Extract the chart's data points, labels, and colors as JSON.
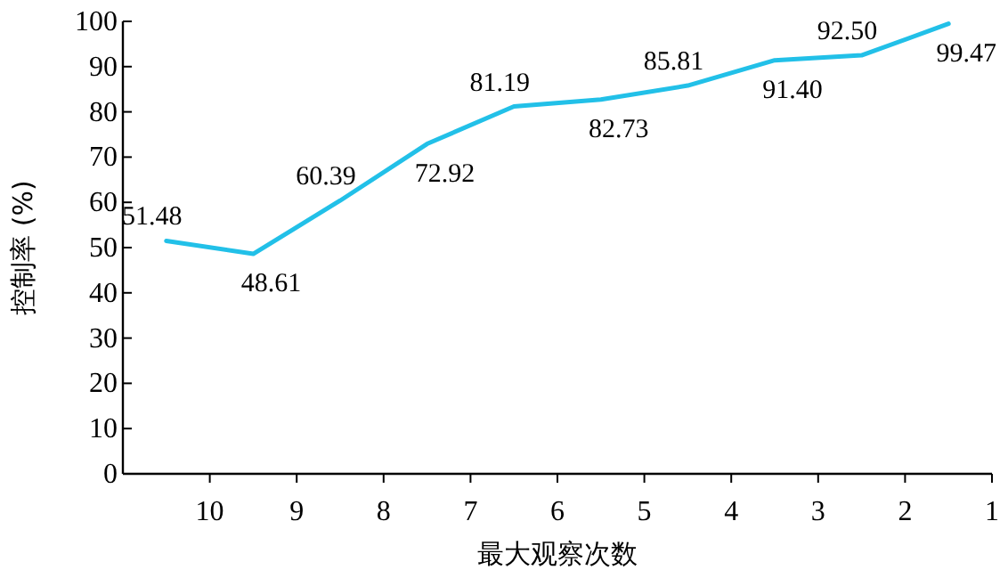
{
  "chart_data": {
    "type": "line",
    "xlabel": "最大观察次数",
    "ylabel": "控制率 (%)",
    "x": [
      10.5,
      9.5,
      8.5,
      7.5,
      6.5,
      5.5,
      4.5,
      3.5,
      2.5,
      1.5
    ],
    "series": [
      {
        "color": "#22c0e8",
        "values": [
          51.48,
          48.61,
          60.39,
          72.92,
          81.19,
          82.73,
          85.81,
          91.4,
          92.5,
          99.47
        ],
        "value_labels": [
          "51.48",
          "48.61",
          "60.39",
          "72.92",
          "81.19",
          "82.73",
          "85.81",
          "91.40",
          "92.50",
          "99.47"
        ]
      }
    ],
    "xlim": [
      11,
      1
    ],
    "xticks": [
      10,
      9,
      8,
      7,
      6,
      5,
      4,
      3,
      2,
      1
    ],
    "ylim": [
      0,
      100
    ],
    "yticks": [
      0,
      10,
      20,
      30,
      40,
      50,
      60,
      70,
      80,
      90,
      100
    ],
    "marker": "none",
    "line_style": "solid"
  }
}
